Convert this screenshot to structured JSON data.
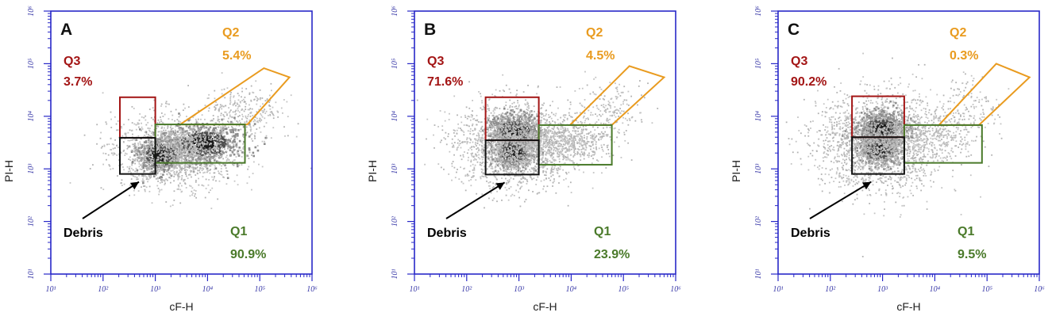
{
  "chart_data": [
    {
      "type": "scatter",
      "panel_label": "A",
      "xlabel": "cF-H",
      "ylabel": "PI-H",
      "xscale": "log",
      "yscale": "log",
      "xlim": [
        10,
        1000000
      ],
      "ylim": [
        10,
        1000000
      ],
      "xticks": [
        "10¹",
        "10²",
        "10³",
        "10⁴",
        "10⁵",
        "10⁶"
      ],
      "yticks": [
        "10¹",
        "10²",
        "10³",
        "10⁴",
        "10⁵",
        "10⁶"
      ],
      "populations": [
        {
          "cx": 1200,
          "cy": 1900,
          "sx": 0.22,
          "sy": 0.16,
          "n": 650,
          "dark": true
        },
        {
          "cx": 8000,
          "cy": 3200,
          "sx": 0.35,
          "sy": 0.18,
          "n": 650,
          "dark": true
        },
        {
          "cx": 2500,
          "cy": 2200,
          "sx": 0.6,
          "sy": 0.35,
          "n": 1600,
          "dark": false
        },
        {
          "cx": 50000,
          "cy": 12000,
          "sx": 0.35,
          "sy": 0.25,
          "n": 260,
          "dark": false
        }
      ],
      "gates": [
        {
          "id": "Q3",
          "name": "Q3",
          "percent": "3.7%",
          "color": "#a31515",
          "type": "rect",
          "x": [
            210,
            1000
          ],
          "y": [
            3900,
            23000
          ]
        },
        {
          "id": "Q2",
          "name": "Q2",
          "percent": "5.4%",
          "color": "#e99b1f",
          "type": "poly",
          "points": [
            [
              3000,
              7000
            ],
            [
              58000,
              7000
            ],
            [
              370000,
              55000
            ],
            [
              120000,
              82000
            ]
          ]
        },
        {
          "id": "Q1",
          "name": "Q1",
          "percent": "90.9%",
          "color": "#4a7a2a",
          "type": "rect",
          "x": [
            1000,
            52000
          ],
          "y": [
            1300,
            7000
          ]
        },
        {
          "id": "debris",
          "name": "Debris",
          "percent": "",
          "color": "#111111",
          "type": "rect",
          "x": [
            210,
            1000
          ],
          "y": [
            800,
            3900
          ]
        }
      ]
    },
    {
      "type": "scatter",
      "panel_label": "B",
      "xlabel": "cF-H",
      "ylabel": "PI-H",
      "xscale": "log",
      "yscale": "log",
      "xlim": [
        10,
        1000000
      ],
      "ylim": [
        10,
        1000000
      ],
      "xticks": [
        "10¹",
        "10²",
        "10³",
        "10⁴",
        "10⁵",
        "10⁶"
      ],
      "yticks": [
        "10¹",
        "10²",
        "10³",
        "10⁴",
        "10⁵",
        "10⁶"
      ],
      "populations": [
        {
          "cx": 800,
          "cy": 5500,
          "sx": 0.22,
          "sy": 0.14,
          "n": 800,
          "dark": true
        },
        {
          "cx": 750,
          "cy": 2200,
          "sx": 0.2,
          "sy": 0.14,
          "n": 550,
          "dark": true
        },
        {
          "cx": 800,
          "cy": 3000,
          "sx": 0.55,
          "sy": 0.4,
          "n": 1900,
          "dark": false
        },
        {
          "cx": 8000,
          "cy": 3500,
          "sx": 0.45,
          "sy": 0.2,
          "n": 600,
          "dark": false
        },
        {
          "cx": 50000,
          "cy": 14000,
          "sx": 0.3,
          "sy": 0.25,
          "n": 180,
          "dark": false
        }
      ],
      "gates": [
        {
          "id": "Q3",
          "name": "Q3",
          "percent": "71.6%",
          "color": "#a31515",
          "type": "rect",
          "x": [
            230,
            2400
          ],
          "y": [
            3500,
            23000
          ]
        },
        {
          "id": "Q2",
          "name": "Q2",
          "percent": "4.5%",
          "color": "#e99b1f",
          "type": "poly",
          "points": [
            [
              9500,
              6800
            ],
            [
              60000,
              6800
            ],
            [
              600000,
              55000
            ],
            [
              130000,
              90000
            ]
          ]
        },
        {
          "id": "Q1",
          "name": "Q1",
          "percent": "23.9%",
          "color": "#4a7a2a",
          "type": "rect",
          "x": [
            2400,
            60000
          ],
          "y": [
            1200,
            6800
          ]
        },
        {
          "id": "debris",
          "name": "Debris",
          "percent": "",
          "color": "#111111",
          "type": "rect",
          "x": [
            230,
            2400
          ],
          "y": [
            780,
            3500
          ]
        }
      ]
    },
    {
      "type": "scatter",
      "panel_label": "C",
      "xlabel": "cF-H",
      "ylabel": "PI-H",
      "xscale": "log",
      "yscale": "log",
      "xlim": [
        10,
        1000000
      ],
      "ylim": [
        10,
        1000000
      ],
      "xticks": [
        "10¹",
        "10²",
        "10³",
        "10⁴",
        "10⁵",
        "10⁶"
      ],
      "yticks": [
        "10¹",
        "10²",
        "10³",
        "10⁴",
        "10⁵",
        "10⁶"
      ],
      "populations": [
        {
          "cx": 900,
          "cy": 6000,
          "sx": 0.22,
          "sy": 0.14,
          "n": 850,
          "dark": true
        },
        {
          "cx": 850,
          "cy": 2400,
          "sx": 0.2,
          "sy": 0.14,
          "n": 550,
          "dark": true
        },
        {
          "cx": 900,
          "cy": 3200,
          "sx": 0.6,
          "sy": 0.45,
          "n": 2100,
          "dark": false
        },
        {
          "cx": 10000,
          "cy": 5000,
          "sx": 0.45,
          "sy": 0.25,
          "n": 300,
          "dark": false
        },
        {
          "cx": 50000,
          "cy": 16000,
          "sx": 0.3,
          "sy": 0.3,
          "n": 120,
          "dark": false
        }
      ],
      "gates": [
        {
          "id": "Q3",
          "name": "Q3",
          "percent": "90.2%",
          "color": "#a31515",
          "type": "rect",
          "x": [
            260,
            2600
          ],
          "y": [
            4000,
            24000
          ]
        },
        {
          "id": "Q2",
          "name": "Q2",
          "percent": "0.3%",
          "color": "#e99b1f",
          "type": "poly",
          "points": [
            [
              12000,
              6800
            ],
            [
              70000,
              6800
            ],
            [
              650000,
              55000
            ],
            [
              150000,
              100000
            ]
          ]
        },
        {
          "id": "Q1",
          "name": "Q1",
          "percent": "9.5%",
          "color": "#4a7a2a",
          "type": "rect",
          "x": [
            2600,
            80000
          ],
          "y": [
            1300,
            6800
          ]
        },
        {
          "id": "debris",
          "name": "Debris",
          "percent": "",
          "color": "#111111",
          "type": "rect",
          "x": [
            260,
            2600
          ],
          "y": [
            800,
            4000
          ]
        }
      ]
    }
  ]
}
